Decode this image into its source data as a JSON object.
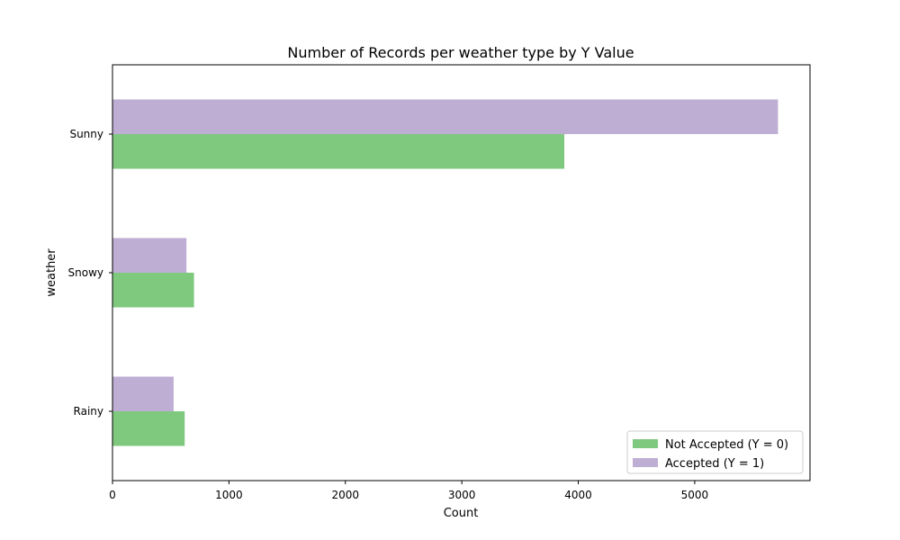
{
  "chart_data": {
    "type": "bar",
    "orientation": "horizontal",
    "title": "Number of Records per weather type by Y Value",
    "xlabel": "Count",
    "ylabel": "weather",
    "categories": [
      "Rainy",
      "Snowy",
      "Sunny"
    ],
    "xlim": [
      0,
      5990
    ],
    "xticks": [
      0,
      1000,
      2000,
      3000,
      4000,
      5000
    ],
    "grid": false,
    "legend_position": "lower-right",
    "series": [
      {
        "name": "Not Accepted (Y = 0)",
        "values": [
          620,
          700,
          3880
        ],
        "color": "#7fc97f"
      },
      {
        "name": "Accepted (Y = 1)",
        "values": [
          525,
          635,
          5715
        ],
        "color": "#beaed4"
      }
    ]
  }
}
